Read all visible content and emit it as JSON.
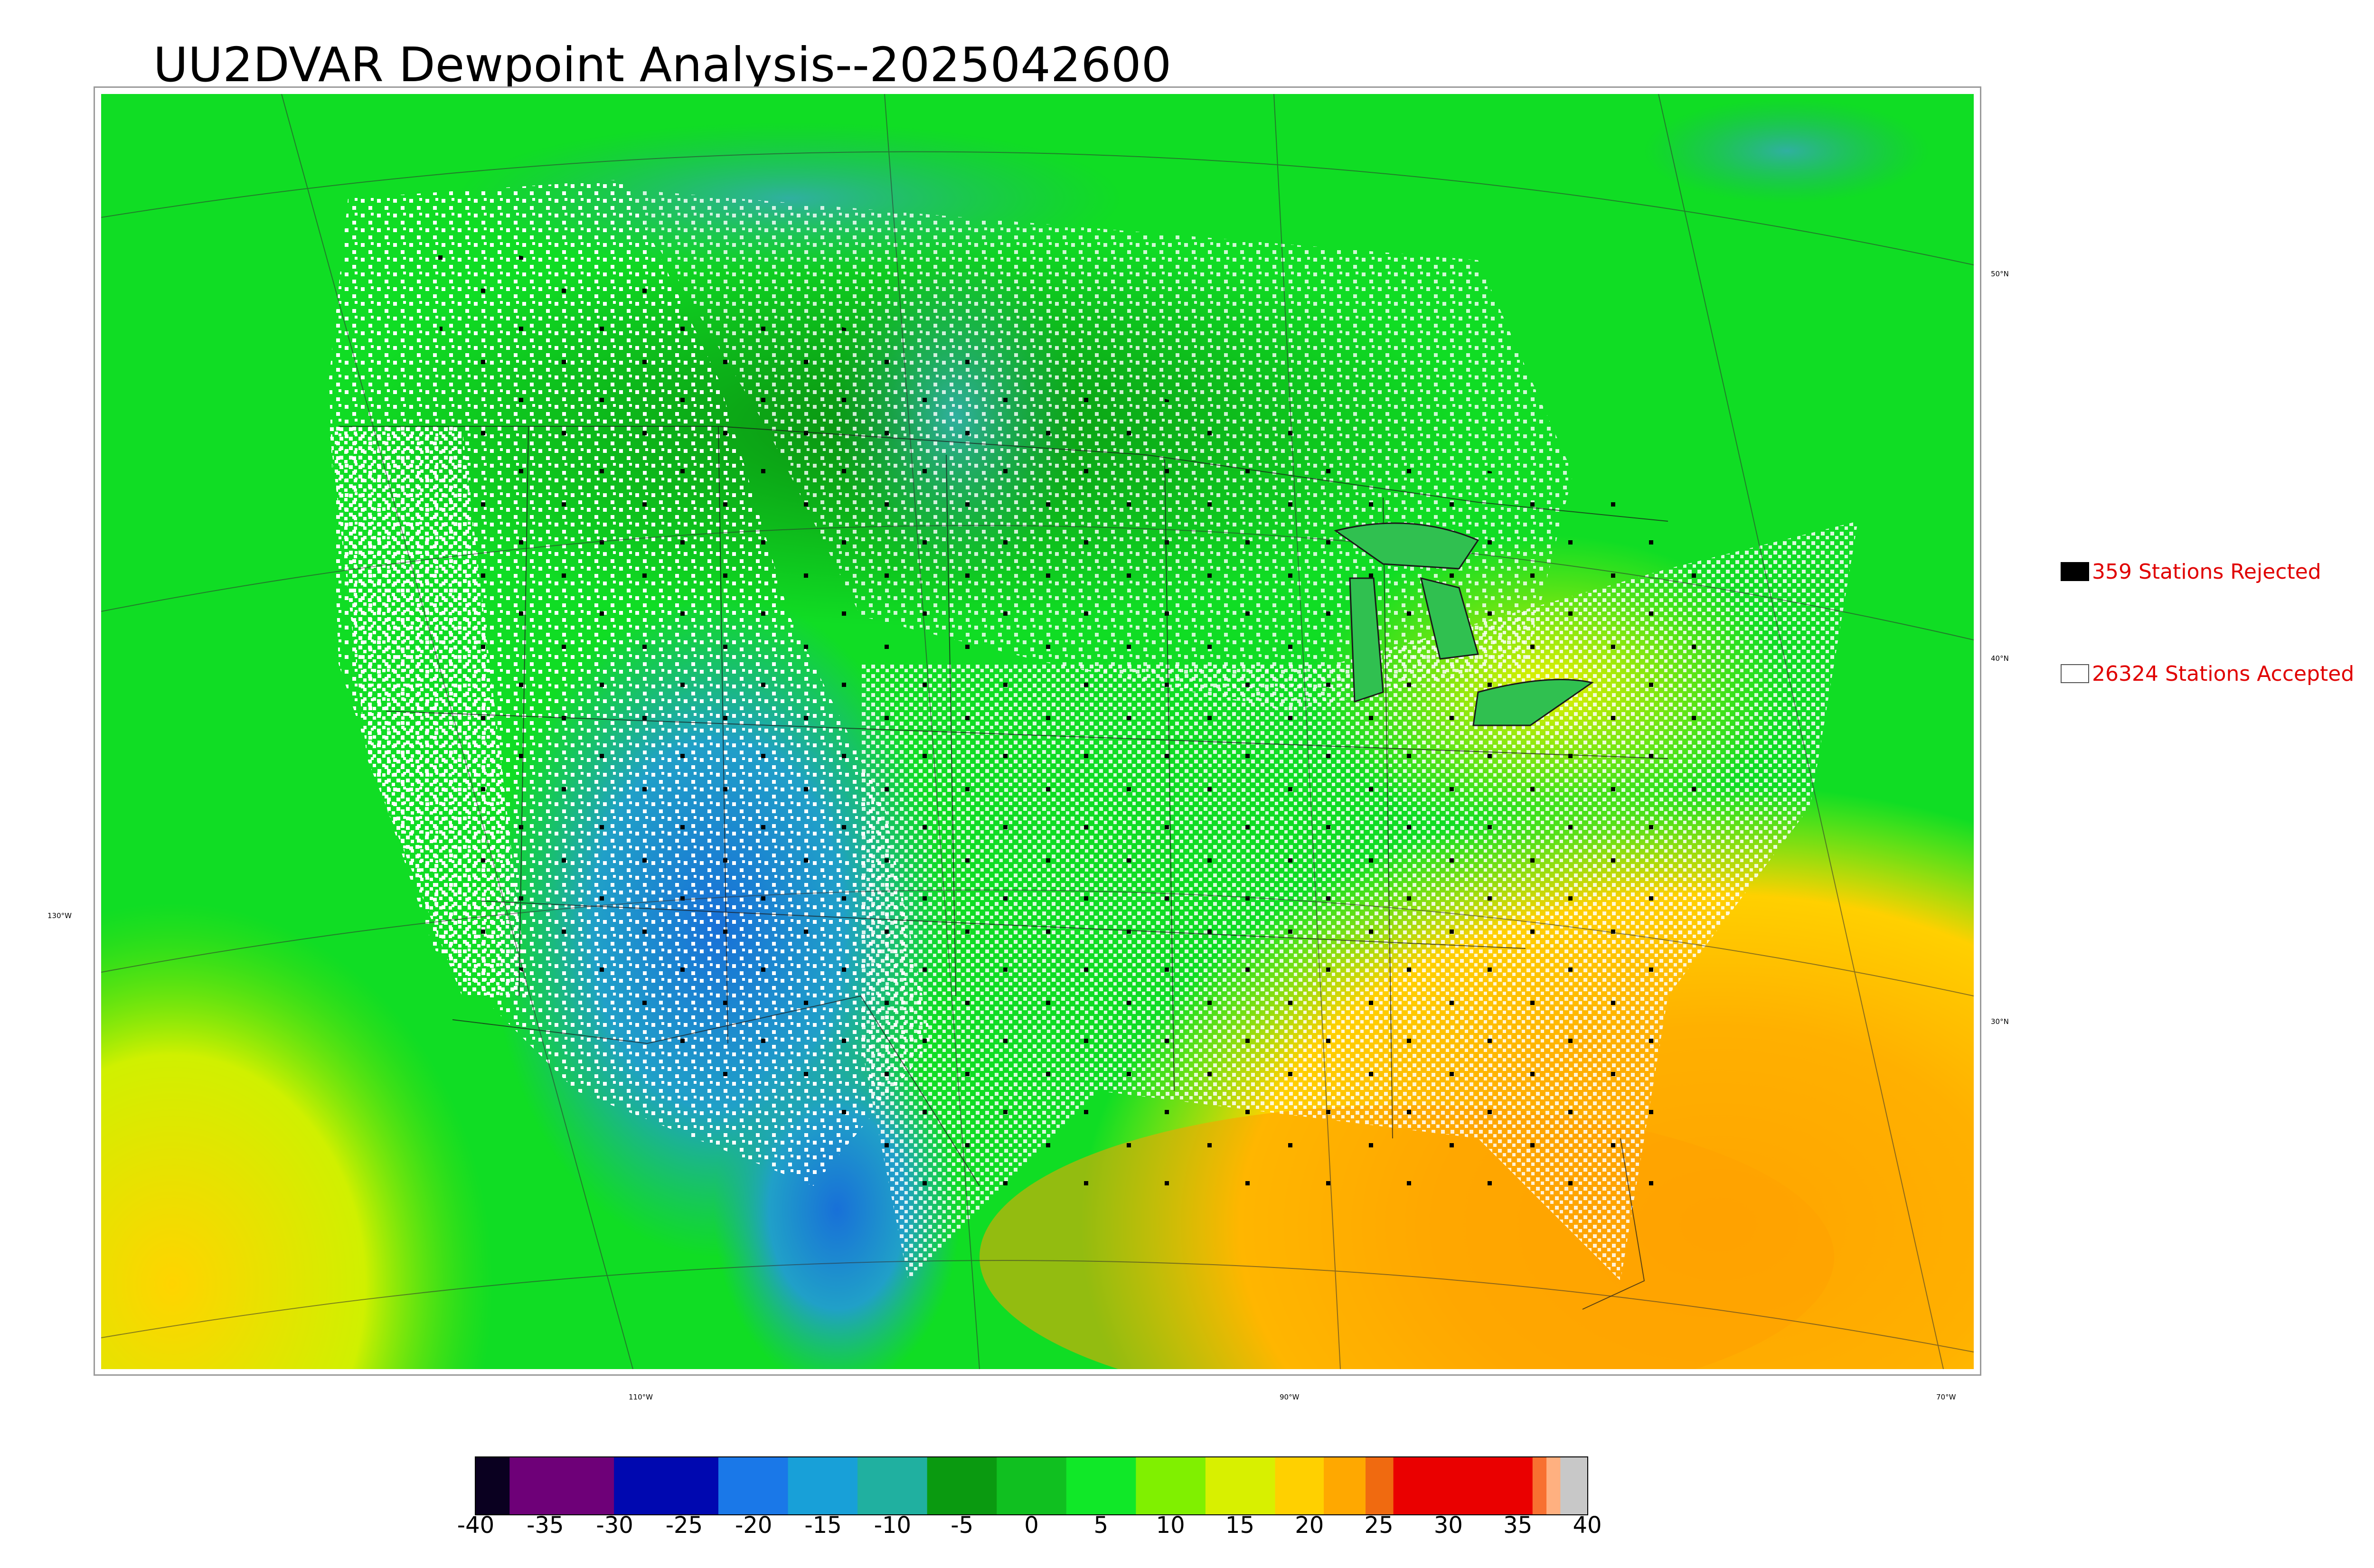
{
  "title": "UU2DVAR Dewpoint Analysis--2025042600",
  "lat_labels": [
    "50°N",
    "40°N",
    "30°N"
  ],
  "lon_labels": [
    "130°W",
    "110°W",
    "90°W",
    "70°W"
  ],
  "legend": [
    {
      "text": "359 Stations Rejected",
      "color": "#000000"
    },
    {
      "text": "26324 Stations Accepted",
      "color": "#ffffff"
    }
  ],
  "colorbar": {
    "ticks": [
      "-40",
      "-35",
      "-30",
      "-25",
      "-20",
      "-15",
      "-10",
      "-5",
      "0",
      "5",
      "10",
      "15",
      "20",
      "25",
      "30",
      "35",
      "40"
    ],
    "min": -40,
    "max": 40,
    "segments": [
      {
        "from": -40,
        "to": -37.5,
        "color": "#0a0020"
      },
      {
        "from": -37.5,
        "to": -30,
        "color": "#6e0078"
      },
      {
        "from": -30,
        "to": -22.5,
        "color": "#0008b0"
      },
      {
        "from": -22.5,
        "to": -17.5,
        "color": "#1a78e8"
      },
      {
        "from": -17.5,
        "to": -12.5,
        "color": "#18a0d8"
      },
      {
        "from": -12.5,
        "to": -7.5,
        "color": "#20b0a0"
      },
      {
        "from": -7.5,
        "to": -2.5,
        "color": "#0a9a10"
      },
      {
        "from": -2.5,
        "to": 2.5,
        "color": "#10c020"
      },
      {
        "from": 2.5,
        "to": 7.5,
        "color": "#10e828"
      },
      {
        "from": 7.5,
        "to": 12.5,
        "color": "#80f000"
      },
      {
        "from": 12.5,
        "to": 17.5,
        "color": "#d8f000"
      },
      {
        "from": 17.5,
        "to": 21,
        "color": "#ffd000"
      },
      {
        "from": 21,
        "to": 24,
        "color": "#ffa800"
      },
      {
        "from": 24,
        "to": 26,
        "color": "#f06a10"
      },
      {
        "from": 26,
        "to": 36,
        "color": "#ea0000"
      },
      {
        "from": 36,
        "to": 37,
        "color": "#f87030"
      },
      {
        "from": 37,
        "to": 38,
        "color": "#ffb080"
      },
      {
        "from": 38,
        "to": 40,
        "color": "#c8c8c8"
      }
    ]
  }
}
